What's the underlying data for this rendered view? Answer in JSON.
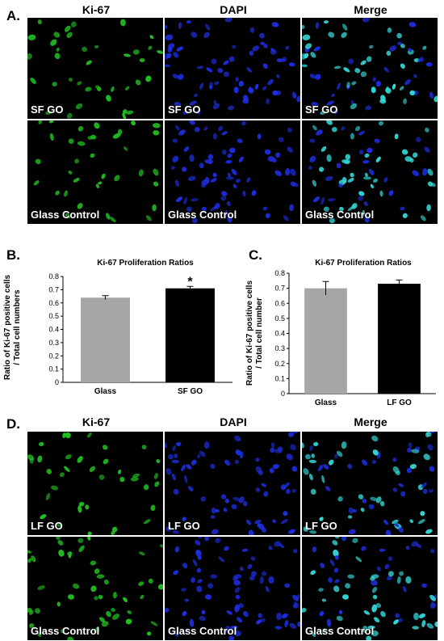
{
  "figure": {
    "panel_a": {
      "letter": "A.",
      "columns": [
        "Ki-67",
        "DAPI",
        "Merge"
      ],
      "rows": [
        {
          "label": "SF GO"
        },
        {
          "label": "Glass Control"
        }
      ]
    },
    "panel_b": {
      "letter": "B."
    },
    "panel_c": {
      "letter": "C."
    },
    "panel_d": {
      "letter": "D.",
      "columns": [
        "Ki-67",
        "DAPI",
        "Merge"
      ],
      "rows": [
        {
          "label": "LF GO"
        },
        {
          "label": "Glass Control"
        }
      ]
    },
    "colors": {
      "ki67": "#22c022",
      "dapi": "#1e2ee0",
      "merge": "#35d8d8",
      "bar_glass": "#a6a6a6",
      "bar_treated": "#000000"
    }
  },
  "chart_data": [
    {
      "type": "bar",
      "title": "Ki-67 Proliferation Ratios",
      "ylabel": "Ratio of Ki-67 positive cells / Total cell numbers",
      "ylabel_lines": [
        "Ratio of Ki-67 positive cells",
        "/ Total cell numbers"
      ],
      "categories": [
        "Glass",
        "SF GO"
      ],
      "values": [
        0.64,
        0.71
      ],
      "errors": [
        0.015,
        0.015
      ],
      "ylim": [
        0,
        0.8
      ],
      "yticks": [
        "0",
        "0.1",
        "0.2",
        "0.3",
        "0.4",
        "0.5",
        "0.6",
        "0.7",
        "0.8"
      ],
      "annotations": [
        {
          "category": "SF GO",
          "text": "*"
        }
      ],
      "bar_colors": [
        "#a6a6a6",
        "#000000"
      ],
      "grid": false
    },
    {
      "type": "bar",
      "title": "Ki-67 Proliferation Ratios",
      "ylabel": "Ratio of Ki-67 positive cells / Total cell number",
      "ylabel_lines": [
        "Ratio of Ki-67 positive cells",
        "/ Total cell number"
      ],
      "categories": [
        "Glass",
        "LF GO"
      ],
      "values": [
        0.7,
        0.73
      ],
      "errors": [
        0.045,
        0.025
      ],
      "ylim": [
        0,
        0.8
      ],
      "yticks": [
        "0",
        "0.1",
        "0.2",
        "0.3",
        "0.4",
        "0.5",
        "0.6",
        "0.7",
        "0.8"
      ],
      "bar_colors": [
        "#a6a6a6",
        "#000000"
      ],
      "grid": false
    }
  ]
}
